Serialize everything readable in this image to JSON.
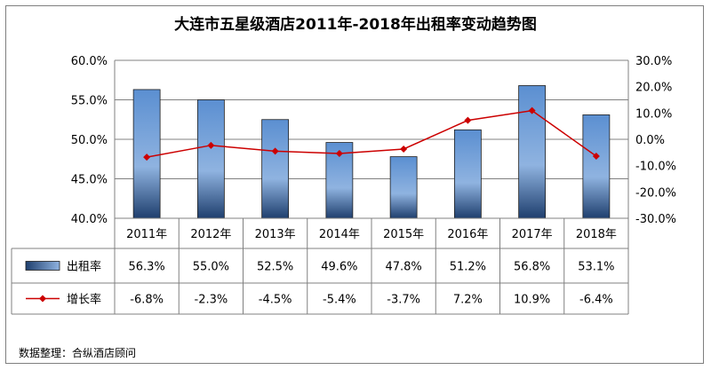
{
  "chart_data": {
    "type": "bar+line",
    "title": "大连市五星级酒店2011年-2018年出租率变动趋势图",
    "categories": [
      "2011年",
      "2012年",
      "2013年",
      "2014年",
      "2015年",
      "2016年",
      "2017年",
      "2018年"
    ],
    "series": [
      {
        "name": "出租率",
        "type": "bar",
        "axis": "left",
        "values": [
          56.3,
          55.0,
          52.5,
          49.6,
          47.8,
          51.2,
          56.8,
          53.1
        ],
        "labels": [
          "56.3%",
          "55.0%",
          "52.5%",
          "49.6%",
          "47.8%",
          "51.2%",
          "56.8%",
          "53.1%"
        ],
        "color": "#5b8fd1"
      },
      {
        "name": "增长率",
        "type": "line",
        "axis": "right",
        "values": [
          -6.8,
          -2.3,
          -4.5,
          -5.4,
          -3.7,
          7.2,
          10.9,
          -6.4
        ],
        "labels": [
          "-6.8%",
          "-2.3%",
          "-4.5%",
          "-5.4%",
          "-3.7%",
          "7.2%",
          "10.9%",
          "-6.4%"
        ],
        "color": "#cc0000"
      }
    ],
    "y_left": {
      "min": 40,
      "max": 60,
      "ticks": [
        40,
        45,
        50,
        55,
        60
      ],
      "tick_labels": [
        "40.0%",
        "45.0%",
        "50.0%",
        "55.0%",
        "60.0%"
      ]
    },
    "y_right": {
      "min": -30,
      "max": 30,
      "ticks": [
        -30,
        -20,
        -10,
        0,
        10,
        20,
        30
      ],
      "tick_labels": [
        "-30.0%",
        "-20.0%",
        "-10.0%",
        "0.0%",
        "10.0%",
        "20.0%",
        "30.0%"
      ]
    },
    "grid": true,
    "legend": "data-table",
    "source": "数据整理：合纵酒店顾问"
  }
}
